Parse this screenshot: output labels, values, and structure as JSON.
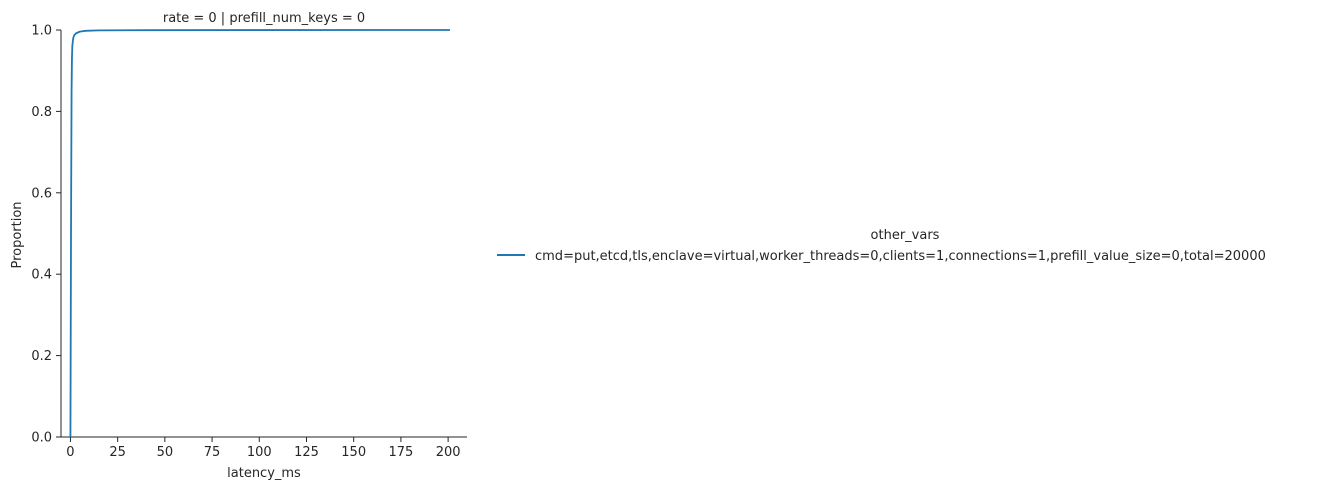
{
  "chart_data": {
    "type": "line",
    "title": "rate = 0 | prefill_num_keys = 0",
    "xlabel": "latency_ms",
    "ylabel": "Proportion",
    "xlim": [
      -5,
      210
    ],
    "ylim": [
      0,
      1
    ],
    "xticks": [
      0,
      25,
      50,
      75,
      100,
      125,
      150,
      175,
      200
    ],
    "xtick_labels": [
      "0",
      "25",
      "50",
      "75",
      "100",
      "125",
      "150",
      "175",
      "200"
    ],
    "yticks": [
      0,
      0.2,
      0.4,
      0.6,
      0.8,
      1
    ],
    "ytick_labels": [
      "0.0",
      "0.2",
      "0.4",
      "0.6",
      "0.8",
      "1.0"
    ],
    "grid": false,
    "legend": {
      "title": "other_vars",
      "placement": "right"
    },
    "series": [
      {
        "name": "cmd=put,etcd,tls,enclave=virtual,worker_threads=0,clients=1,connections=1,prefill_value_size=0,total=20000",
        "color": "#1f77b4",
        "x": [
          0.0,
          0.3,
          0.6,
          0.8,
          1.0,
          1.3,
          1.6,
          2.0,
          3.0,
          5.0,
          8.0,
          15.0,
          40.0,
          100.0,
          201.0
        ],
        "y": [
          0.0,
          0.5,
          0.85,
          0.93,
          0.96,
          0.975,
          0.982,
          0.987,
          0.992,
          0.996,
          0.998,
          0.999,
          0.9995,
          0.9999,
          1.0
        ]
      }
    ]
  }
}
